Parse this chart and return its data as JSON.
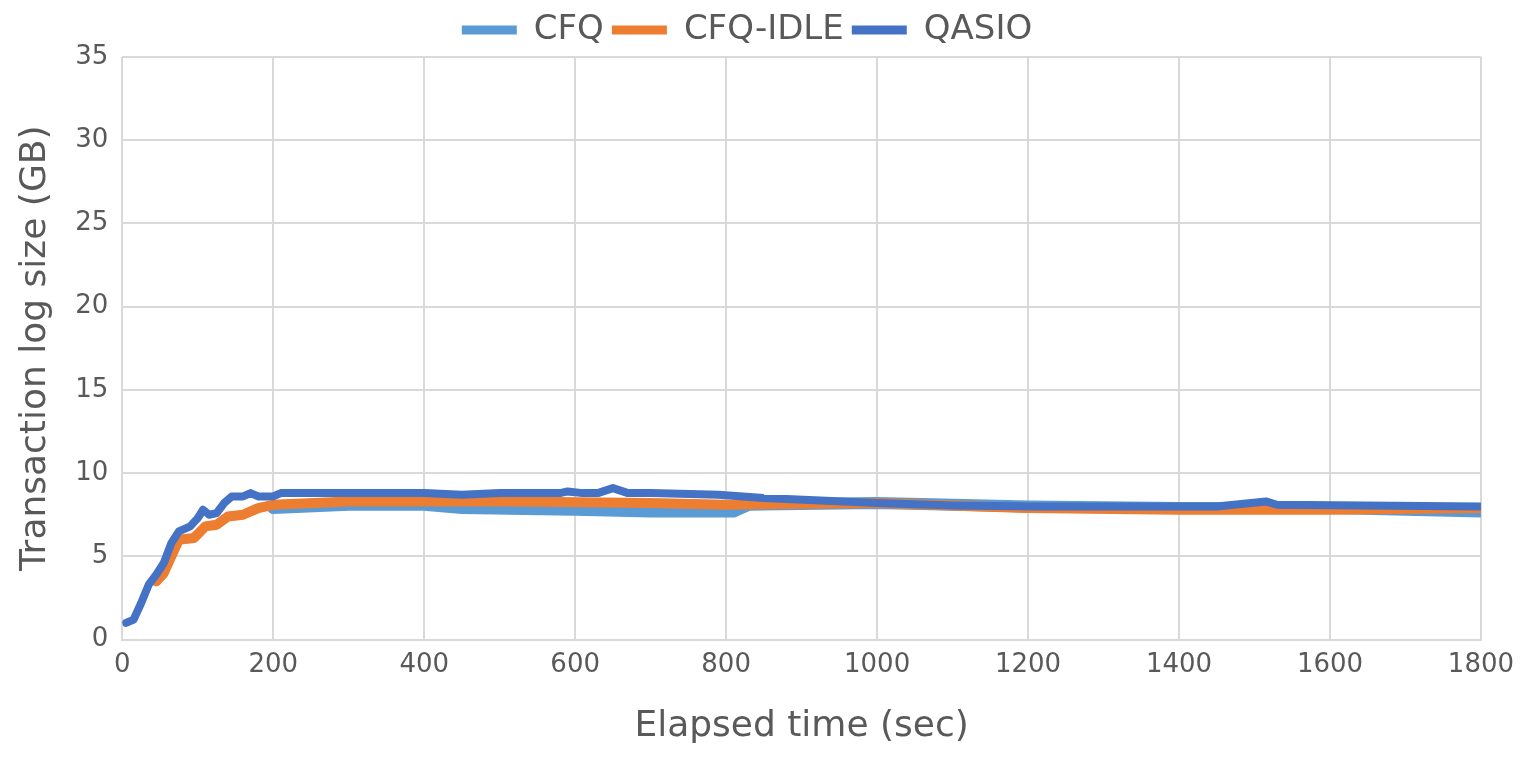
{
  "chart_data": {
    "type": "line",
    "xlabel": "Elapsed time (sec)",
    "ylabel": "Transaction log size (GB)",
    "xlim": [
      0,
      1800
    ],
    "xticks": [
      0,
      200,
      400,
      600,
      800,
      1000,
      1200,
      1400,
      1600,
      1800
    ],
    "ylim": [
      0,
      35
    ],
    "yticks": [
      0,
      5,
      10,
      15,
      20,
      25,
      30,
      35
    ],
    "grid": true,
    "legend": "top",
    "marker": "none",
    "line_style": "solid",
    "series": [
      {
        "name": "CFQ",
        "color": "#5b9bd5",
        "x": [
          200,
          300,
          400,
          450,
          600,
          700,
          810,
          830,
          1000,
          1200,
          1400,
          1600,
          1800
        ],
        "values": [
          7.9,
          8.1,
          8.1,
          7.9,
          7.8,
          7.7,
          7.7,
          8.1,
          8.2,
          8.0,
          7.9,
          7.9,
          7.7
        ]
      },
      {
        "name": "CFQ-IDLE",
        "color": "#ed7d31",
        "x": [
          45,
          55,
          75,
          95,
          110,
          125,
          140,
          160,
          180,
          200,
          300,
          500,
          700,
          800,
          1000,
          1200,
          1400,
          1600,
          1800
        ],
        "values": [
          3.5,
          4.0,
          6.0,
          6.1,
          6.8,
          6.9,
          7.4,
          7.5,
          7.9,
          8.1,
          8.3,
          8.3,
          8.2,
          8.1,
          8.2,
          7.9,
          7.8,
          7.8,
          7.9
        ]
      },
      {
        "name": "QASIO",
        "color": "#4472c4",
        "x": [
          5,
          15,
          25,
          35,
          45,
          55,
          65,
          75,
          90,
          100,
          107,
          115,
          125,
          135,
          145,
          160,
          170,
          180,
          200,
          210,
          300,
          400,
          450,
          500,
          580,
          590,
          610,
          630,
          650,
          670,
          700,
          790,
          850,
          1000,
          1100,
          1200,
          1300,
          1450,
          1515,
          1530,
          1800
        ],
        "values": [
          1.0,
          1.2,
          2.2,
          3.3,
          3.9,
          4.6,
          5.8,
          6.5,
          6.8,
          7.3,
          7.8,
          7.5,
          7.6,
          8.2,
          8.6,
          8.6,
          8.8,
          8.6,
          8.6,
          8.8,
          8.8,
          8.8,
          8.7,
          8.8,
          8.8,
          8.9,
          8.8,
          8.8,
          9.1,
          8.8,
          8.8,
          8.7,
          8.5,
          8.2,
          8.05,
          8.0,
          8.0,
          8.0,
          8.3,
          8.1,
          8.0
        ]
      }
    ]
  }
}
